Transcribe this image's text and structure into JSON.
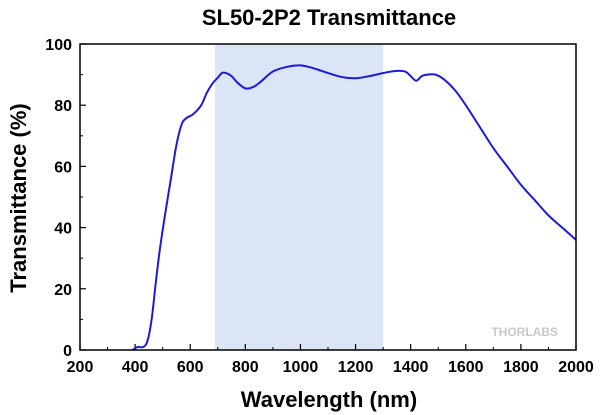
{
  "chart_data": {
    "type": "line",
    "title": "SL50-2P2 Transmittance",
    "xlabel": "Wavelength (nm)",
    "ylabel": "Transmittance (%)",
    "xlim": [
      200,
      2000
    ],
    "ylim": [
      0,
      100
    ],
    "xticks": [
      200,
      400,
      600,
      800,
      1000,
      1200,
      1400,
      1600,
      1800,
      2000
    ],
    "yticks": [
      0,
      20,
      40,
      60,
      80,
      100
    ],
    "highlight_band": [
      690,
      1300
    ],
    "watermark": "THORLABS",
    "colors": {
      "line": "#1a1adb",
      "band": "#dbe5f5"
    },
    "series": [
      {
        "name": "Transmittance",
        "x": [
          390,
          410,
          430,
          445,
          460,
          475,
          490,
          510,
          530,
          550,
          570,
          590,
          610,
          640,
          660,
          680,
          700,
          715,
          730,
          750,
          770,
          800,
          830,
          860,
          900,
          950,
          1000,
          1050,
          1100,
          1150,
          1200,
          1250,
          1300,
          1350,
          1380,
          1400,
          1420,
          1440,
          1460,
          1490,
          1520,
          1560,
          1600,
          1650,
          1700,
          1750,
          1800,
          1850,
          1900,
          1950,
          2000
        ],
        "y": [
          0,
          1,
          1,
          3,
          10,
          22,
          33,
          45,
          56,
          67,
          74,
          76,
          77,
          80,
          84,
          87,
          89,
          90.5,
          90.5,
          89.5,
          87.5,
          85.5,
          86,
          88,
          91,
          92.5,
          93,
          92,
          90.5,
          89.2,
          88.8,
          89.5,
          90.5,
          91.2,
          91,
          89.5,
          88,
          89.5,
          90,
          90,
          88.5,
          85,
          80,
          73,
          66,
          60,
          54,
          49,
          44,
          40,
          36
        ]
      }
    ]
  }
}
